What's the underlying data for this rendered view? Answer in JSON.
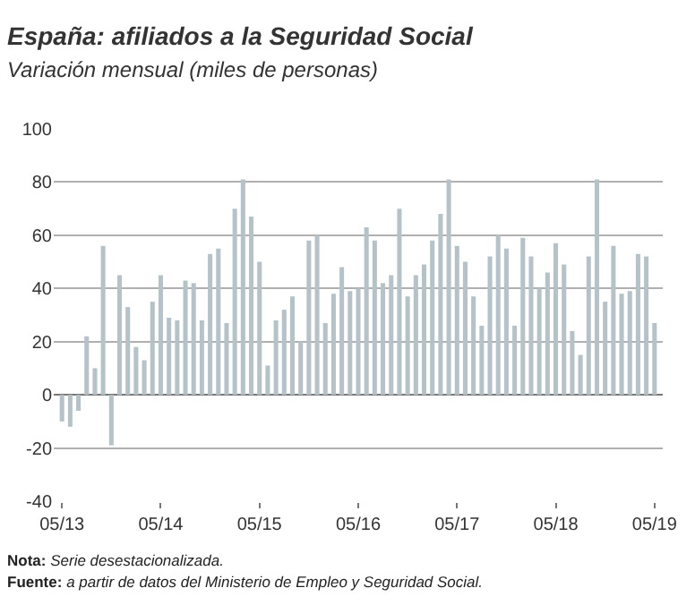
{
  "chart_data": {
    "type": "bar",
    "title": "España: afiliados a la Seguridad Social",
    "subtitle": "Variación mensual (miles de personas)",
    "categories": [
      "05/13",
      null,
      null,
      null,
      null,
      null,
      null,
      null,
      null,
      null,
      null,
      null,
      "05/14",
      null,
      null,
      null,
      null,
      null,
      null,
      null,
      null,
      null,
      null,
      null,
      "05/15",
      null,
      null,
      null,
      null,
      null,
      null,
      null,
      null,
      null,
      null,
      null,
      "05/16",
      null,
      null,
      null,
      null,
      null,
      null,
      null,
      null,
      null,
      null,
      null,
      "05/17",
      null,
      null,
      null,
      null,
      null,
      null,
      null,
      null,
      null,
      null,
      null,
      "05/18",
      null,
      null,
      null,
      null,
      null,
      null,
      null,
      null,
      null,
      null,
      null,
      "05/19"
    ],
    "values": [
      -10,
      -12,
      -6,
      22,
      10,
      56,
      -19,
      45,
      33,
      18,
      13,
      35,
      45,
      29,
      28,
      43,
      42,
      28,
      53,
      55,
      27,
      70,
      81,
      67,
      50,
      11,
      28,
      32,
      37,
      20,
      58,
      60,
      27,
      38,
      48,
      39,
      40,
      63,
      58,
      42,
      45,
      70,
      37,
      45,
      49,
      58,
      68,
      81,
      56,
      50,
      37,
      26,
      52,
      60,
      55,
      26,
      59,
      52,
      40,
      46,
      57,
      49,
      24,
      15,
      52,
      81,
      35,
      56,
      38,
      39,
      53,
      52,
      27
    ],
    "color": "#b5c3c9",
    "ylim": [
      -40,
      100
    ],
    "yticks": [
      -40,
      -20,
      0,
      20,
      40,
      60,
      80,
      100
    ],
    "grid": "y",
    "annotations": [
      "Nota: Serie desestacionalizada.",
      "Fuente: a partir de datos del Ministerio de Empleo y Seguridad Social."
    ]
  }
}
